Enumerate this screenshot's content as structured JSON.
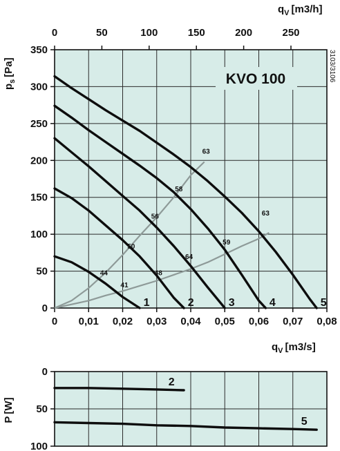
{
  "chart_data": [
    {
      "type": "line",
      "title": "KVO 100",
      "reference": "3103/3106",
      "xlabel": "q",
      "xlabel_sub": "V",
      "xlabel_unit": "[m3/s]",
      "ylabel": "p",
      "ylabel_sub": "s",
      "ylabel_unit": "[Pa]",
      "xlim": [
        0,
        0.08
      ],
      "ylim": [
        0,
        350
      ],
      "x_ticks": [
        0,
        0.01,
        0.02,
        0.03,
        0.04,
        0.05,
        0.06,
        0.07,
        0.08
      ],
      "x_tick_labels": [
        "0",
        "0,01",
        "0,02",
        "0,03",
        "0,04",
        "0,05",
        "0,06",
        "0,07",
        "0,08"
      ],
      "y_ticks": [
        0,
        50,
        100,
        150,
        200,
        250,
        300,
        350
      ],
      "top_axis": {
        "label": "q",
        "label_sub": "V",
        "unit": "[m3/h]",
        "ticks": [
          0,
          50,
          100,
          150,
          200,
          250
        ],
        "factor": 3600
      },
      "grid": true,
      "background": "#d7ece8",
      "series": [
        {
          "name": "1",
          "x": [
            0,
            0.005,
            0.01,
            0.015,
            0.02,
            0.025
          ],
          "y": [
            70,
            62,
            49,
            33,
            15,
            0
          ]
        },
        {
          "name": "2",
          "x": [
            0,
            0.005,
            0.01,
            0.015,
            0.02,
            0.025,
            0.03,
            0.035,
            0.038
          ],
          "y": [
            162,
            149,
            132,
            112,
            92,
            70,
            44,
            14,
            0
          ]
        },
        {
          "name": "3",
          "x": [
            0,
            0.005,
            0.01,
            0.015,
            0.02,
            0.025,
            0.03,
            0.035,
            0.04,
            0.045,
            0.05
          ],
          "y": [
            230,
            211,
            192,
            172,
            152,
            132,
            109,
            84,
            57,
            28,
            0
          ]
        },
        {
          "name": "4",
          "x": [
            0,
            0.005,
            0.01,
            0.015,
            0.02,
            0.025,
            0.03,
            0.035,
            0.04,
            0.045,
            0.05,
            0.055,
            0.06,
            0.062
          ],
          "y": [
            274,
            258,
            241,
            225,
            209,
            193,
            176,
            157,
            134,
            108,
            79,
            45,
            10,
            0
          ]
        },
        {
          "name": "5",
          "x": [
            0,
            0.005,
            0.01,
            0.015,
            0.02,
            0.025,
            0.03,
            0.035,
            0.04,
            0.045,
            0.05,
            0.055,
            0.06,
            0.065,
            0.07,
            0.075,
            0.077
          ],
          "y": [
            314,
            298,
            283,
            268,
            254,
            240,
            224,
            208,
            191,
            172,
            151,
            129,
            104,
            76,
            45,
            12,
            0
          ]
        }
      ],
      "efficiency_lines": [
        {
          "x": [
            0,
            0.005,
            0.01,
            0.015,
            0.02,
            0.025,
            0.03,
            0.035,
            0.04,
            0.044
          ],
          "y": [
            0,
            10,
            27,
            48,
            72,
            98,
            123,
            150,
            180,
            198
          ]
        },
        {
          "x": [
            0,
            0.005,
            0.01,
            0.015,
            0.02,
            0.025,
            0.03,
            0.035,
            0.04,
            0.045,
            0.05,
            0.055,
            0.06,
            0.063
          ],
          "y": [
            0,
            5,
            10,
            17,
            23,
            30,
            37,
            45,
            53,
            62,
            73,
            84,
            94,
            102
          ]
        }
      ],
      "annotations": [
        {
          "text": "44",
          "x": 0.0145,
          "y": 48
        },
        {
          "text": "41",
          "x": 0.0205,
          "y": 32
        },
        {
          "text": "50",
          "x": 0.0225,
          "y": 84
        },
        {
          "text": "48",
          "x": 0.0305,
          "y": 48
        },
        {
          "text": "56",
          "x": 0.0295,
          "y": 125
        },
        {
          "text": "64",
          "x": 0.0395,
          "y": 70
        },
        {
          "text": "58",
          "x": 0.0365,
          "y": 162
        },
        {
          "text": "59",
          "x": 0.0505,
          "y": 90
        },
        {
          "text": "63",
          "x": 0.0445,
          "y": 213
        },
        {
          "text": "63",
          "x": 0.062,
          "y": 129
        }
      ]
    },
    {
      "type": "line",
      "ylabel": "P",
      "ylabel_unit": "[W]",
      "xlim": [
        0,
        0.08
      ],
      "ylim": [
        0,
        100
      ],
      "y_inverted": true,
      "y_ticks": [
        0,
        50,
        100
      ],
      "grid": true,
      "background": "#d7ece8",
      "series": [
        {
          "name": "2",
          "x": [
            0,
            0.01,
            0.02,
            0.03,
            0.038
          ],
          "y": [
            22,
            22,
            23,
            24,
            25
          ]
        },
        {
          "name": "5",
          "x": [
            0,
            0.01,
            0.02,
            0.03,
            0.04,
            0.05,
            0.06,
            0.07,
            0.077
          ],
          "y": [
            68,
            69,
            70,
            72,
            73,
            75,
            76,
            77,
            78
          ]
        }
      ]
    }
  ]
}
